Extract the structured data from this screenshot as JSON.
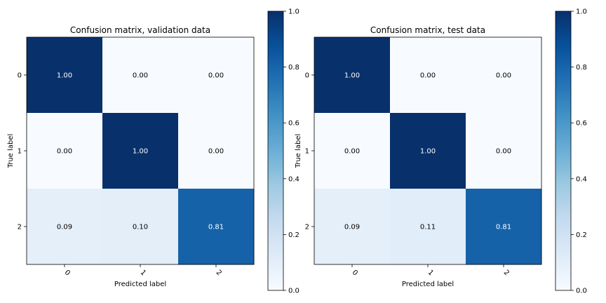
{
  "chart_data": [
    {
      "type": "heatmap",
      "title": "Confusion matrix, validation data",
      "xlabel": "Predicted label",
      "ylabel": "True label",
      "x_categories": [
        "0",
        "1",
        "2"
      ],
      "y_categories": [
        "0",
        "1",
        "2"
      ],
      "values": [
        [
          1.0,
          0.0,
          0.0
        ],
        [
          0.0,
          1.0,
          0.0
        ],
        [
          0.09,
          0.1,
          0.81
        ]
      ],
      "value_labels": [
        [
          "1.00",
          "0.00",
          "0.00"
        ],
        [
          "0.00",
          "1.00",
          "0.00"
        ],
        [
          "0.09",
          "0.10",
          "0.81"
        ]
      ],
      "colormap": "Blues",
      "colorbar": {
        "range": [
          0,
          1
        ],
        "ticks": [
          "0.0",
          "0.2",
          "0.4",
          "0.6",
          "0.8",
          "1.0"
        ]
      }
    },
    {
      "type": "heatmap",
      "title": "Confusion matrix, test data",
      "xlabel": "Predicted label",
      "ylabel": "True label",
      "x_categories": [
        "0",
        "1",
        "2"
      ],
      "y_categories": [
        "0",
        "1",
        "2"
      ],
      "values": [
        [
          1.0,
          0.0,
          0.0
        ],
        [
          0.0,
          1.0,
          0.0
        ],
        [
          0.09,
          0.11,
          0.81
        ]
      ],
      "value_labels": [
        [
          "1.00",
          "0.00",
          "0.00"
        ],
        [
          "0.00",
          "1.00",
          "0.00"
        ],
        [
          "0.09",
          "0.11",
          "0.81"
        ]
      ],
      "colormap": "Blues",
      "colorbar": {
        "range": [
          0,
          1
        ],
        "ticks": [
          "0.0",
          "0.2",
          "0.4",
          "0.6",
          "0.8",
          "1.0"
        ]
      }
    }
  ]
}
